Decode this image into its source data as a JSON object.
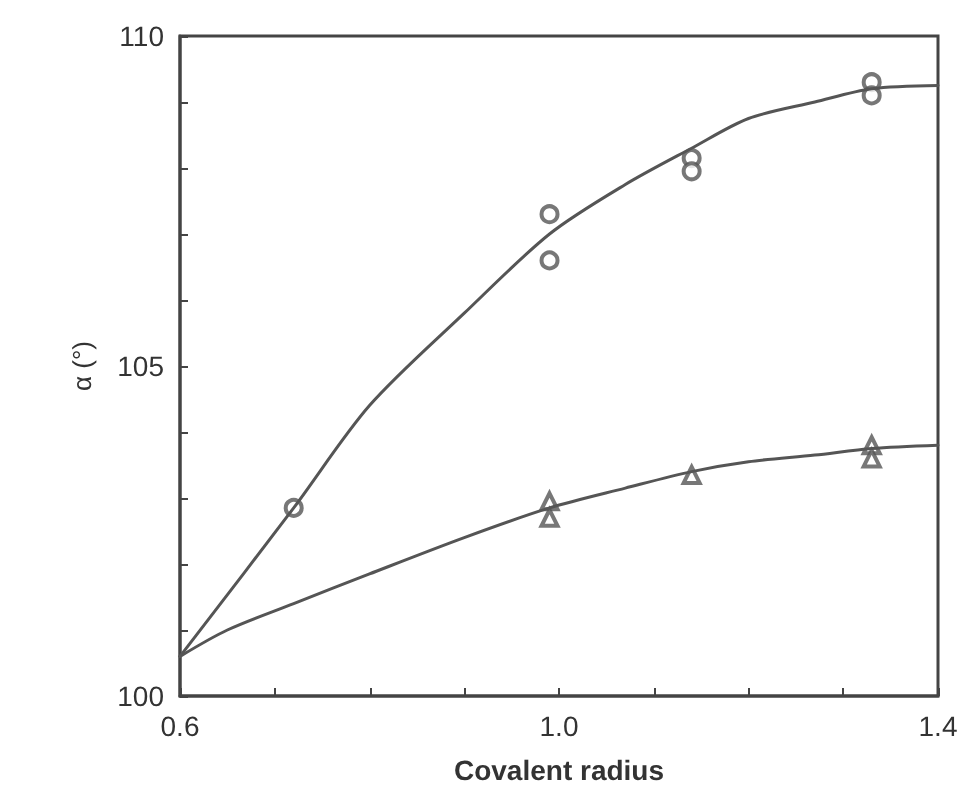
{
  "chart_data": {
    "type": "scatter",
    "xlabel": "Covalent radius",
    "ylabel": "α (°)",
    "xlim": [
      0.6,
      1.4
    ],
    "ylim": [
      100,
      110
    ],
    "xticks": [
      0.6,
      {
        "value": 0.7,
        "label": null
      },
      {
        "value": 0.8,
        "label": null
      },
      {
        "value": 0.9,
        "label": null
      },
      {
        "value": 1.0,
        "label": "1.0"
      },
      {
        "value": 1.1,
        "label": null
      },
      {
        "value": 1.2,
        "label": null
      },
      {
        "value": 1.3,
        "label": null
      },
      1.4
    ],
    "yticks": [
      100,
      {
        "value": 101,
        "label": null
      },
      {
        "value": 102,
        "label": null
      },
      {
        "value": 103,
        "label": null
      },
      {
        "value": 104,
        "label": null
      },
      105,
      {
        "value": 106,
        "label": null
      },
      {
        "value": 107,
        "label": null
      },
      {
        "value": 108,
        "label": null
      },
      {
        "value": 109,
        "label": null
      },
      110
    ],
    "grid": false,
    "series": [
      {
        "marker": "circle",
        "color": "#555555",
        "x": [
          0.72,
          0.99,
          0.99,
          1.14,
          1.14,
          1.33,
          1.33
        ],
        "values": [
          102.85,
          107.3,
          106.6,
          108.15,
          107.95,
          109.3,
          109.1
        ]
      },
      {
        "marker": "triangle",
        "color": "#555555",
        "x": [
          0.99,
          0.99,
          1.14,
          1.33,
          1.33
        ],
        "values": [
          102.95,
          102.7,
          103.35,
          103.8,
          103.6
        ]
      },
      {
        "type": "line",
        "marker": "none",
        "line_style": "solid",
        "color": "#555555",
        "x": [
          0.6,
          0.72,
          0.8,
          0.9,
          0.99,
          1.07,
          1.14,
          1.2,
          1.27,
          1.33,
          1.4
        ],
        "values": [
          100.6,
          102.85,
          104.4,
          105.8,
          107.0,
          107.75,
          108.3,
          108.75,
          109.0,
          109.2,
          109.25
        ]
      },
      {
        "type": "line",
        "marker": "none",
        "line_style": "solid",
        "color": "#555555",
        "x": [
          0.6,
          0.65,
          0.72,
          0.8,
          0.9,
          0.99,
          1.07,
          1.14,
          1.2,
          1.27,
          1.33,
          1.4
        ],
        "values": [
          100.6,
          101.0,
          101.4,
          101.85,
          102.4,
          102.85,
          103.15,
          103.4,
          103.55,
          103.65,
          103.75,
          103.8
        ]
      }
    ]
  }
}
